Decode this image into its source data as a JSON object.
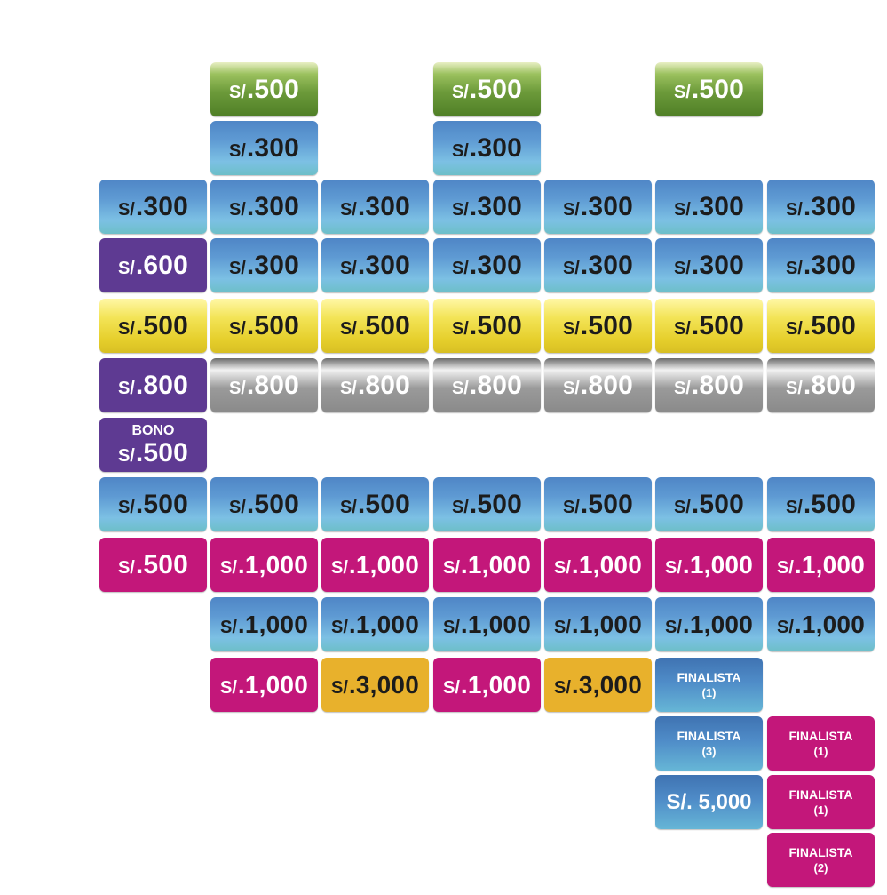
{
  "currency": "S/.",
  "prefix_5000": "S/. 5,000",
  "bono_label": "BONO",
  "finalista_label": "FINALISTA",
  "tiles": [
    {
      "id": "r1c2",
      "col": 1,
      "row": 0,
      "theme": "green",
      "amount": ".500"
    },
    {
      "id": "r1c4",
      "col": 3,
      "row": 0,
      "theme": "green",
      "amount": ".500"
    },
    {
      "id": "r1c6",
      "col": 5,
      "row": 0,
      "theme": "green",
      "amount": ".500"
    },
    {
      "id": "r2c2",
      "col": 1,
      "row": 1,
      "theme": "blue",
      "amount": ".300"
    },
    {
      "id": "r2c4",
      "col": 3,
      "row": 1,
      "theme": "blue",
      "amount": ".300"
    },
    {
      "id": "r3c1",
      "col": 0,
      "row": 2,
      "theme": "blue",
      "amount": ".300"
    },
    {
      "id": "r3c2",
      "col": 1,
      "row": 2,
      "theme": "blue",
      "amount": ".300"
    },
    {
      "id": "r3c3",
      "col": 2,
      "row": 2,
      "theme": "blue",
      "amount": ".300"
    },
    {
      "id": "r3c4",
      "col": 3,
      "row": 2,
      "theme": "blue",
      "amount": ".300"
    },
    {
      "id": "r3c5",
      "col": 4,
      "row": 2,
      "theme": "blue",
      "amount": ".300"
    },
    {
      "id": "r3c6",
      "col": 5,
      "row": 2,
      "theme": "blue",
      "amount": ".300"
    },
    {
      "id": "r3c7",
      "col": 6,
      "row": 2,
      "theme": "blue",
      "amount": ".300"
    },
    {
      "id": "r4c1",
      "col": 0,
      "row": 3,
      "theme": "purple",
      "amount": ".600"
    },
    {
      "id": "r4c2",
      "col": 1,
      "row": 3,
      "theme": "blue",
      "amount": ".300"
    },
    {
      "id": "r4c3",
      "col": 2,
      "row": 3,
      "theme": "blue",
      "amount": ".300"
    },
    {
      "id": "r4c4",
      "col": 3,
      "row": 3,
      "theme": "blue",
      "amount": ".300"
    },
    {
      "id": "r4c5",
      "col": 4,
      "row": 3,
      "theme": "blue",
      "amount": ".300"
    },
    {
      "id": "r4c6",
      "col": 5,
      "row": 3,
      "theme": "blue",
      "amount": ".300"
    },
    {
      "id": "r4c7",
      "col": 6,
      "row": 3,
      "theme": "blue",
      "amount": ".300"
    },
    {
      "id": "r5c1",
      "col": 0,
      "row": 4,
      "theme": "yellow",
      "amount": ".500"
    },
    {
      "id": "r5c2",
      "col": 1,
      "row": 4,
      "theme": "yellow",
      "amount": ".500"
    },
    {
      "id": "r5c3",
      "col": 2,
      "row": 4,
      "theme": "yellow",
      "amount": ".500"
    },
    {
      "id": "r5c4",
      "col": 3,
      "row": 4,
      "theme": "yellow",
      "amount": ".500"
    },
    {
      "id": "r5c5",
      "col": 4,
      "row": 4,
      "theme": "yellow",
      "amount": ".500"
    },
    {
      "id": "r5c6",
      "col": 5,
      "row": 4,
      "theme": "yellow",
      "amount": ".500"
    },
    {
      "id": "r5c7",
      "col": 6,
      "row": 4,
      "theme": "yellow",
      "amount": ".500"
    },
    {
      "id": "r6c1",
      "col": 0,
      "row": 5,
      "theme": "purple",
      "amount": ".800"
    },
    {
      "id": "r6c2",
      "col": 1,
      "row": 5,
      "theme": "gray",
      "amount": ".800"
    },
    {
      "id": "r6c3",
      "col": 2,
      "row": 5,
      "theme": "gray",
      "amount": ".800"
    },
    {
      "id": "r6c4",
      "col": 3,
      "row": 5,
      "theme": "gray",
      "amount": ".800"
    },
    {
      "id": "r6c5",
      "col": 4,
      "row": 5,
      "theme": "gray",
      "amount": ".800"
    },
    {
      "id": "r6c6",
      "col": 5,
      "row": 5,
      "theme": "gray",
      "amount": ".800"
    },
    {
      "id": "r6c7",
      "col": 6,
      "row": 5,
      "theme": "gray",
      "amount": ".800"
    },
    {
      "id": "r7c1",
      "col": 0,
      "row": 6,
      "theme": "purple",
      "kind": "bono",
      "amount": ".500"
    },
    {
      "id": "r8c1",
      "col": 0,
      "row": 7,
      "theme": "blue",
      "amount": ".500"
    },
    {
      "id": "r8c2",
      "col": 1,
      "row": 7,
      "theme": "blue",
      "amount": ".500"
    },
    {
      "id": "r8c3",
      "col": 2,
      "row": 7,
      "theme": "blue",
      "amount": ".500"
    },
    {
      "id": "r8c4",
      "col": 3,
      "row": 7,
      "theme": "blue",
      "amount": ".500"
    },
    {
      "id": "r8c5",
      "col": 4,
      "row": 7,
      "theme": "blue",
      "amount": ".500"
    },
    {
      "id": "r8c6",
      "col": 5,
      "row": 7,
      "theme": "blue",
      "amount": ".500"
    },
    {
      "id": "r8c7",
      "col": 6,
      "row": 7,
      "theme": "blue",
      "amount": ".500"
    },
    {
      "id": "r9c1",
      "col": 0,
      "row": 8,
      "theme": "magenta",
      "amount": ".500"
    },
    {
      "id": "r9c2",
      "col": 1,
      "row": 8,
      "theme": "magenta",
      "amount": ".1,000",
      "wide": true
    },
    {
      "id": "r9c3",
      "col": 2,
      "row": 8,
      "theme": "magenta",
      "amount": ".1,000",
      "wide": true
    },
    {
      "id": "r9c4",
      "col": 3,
      "row": 8,
      "theme": "magenta",
      "amount": ".1,000",
      "wide": true
    },
    {
      "id": "r9c5",
      "col": 4,
      "row": 8,
      "theme": "magenta",
      "amount": ".1,000",
      "wide": true
    },
    {
      "id": "r9c6",
      "col": 5,
      "row": 8,
      "theme": "magenta",
      "amount": ".1,000",
      "wide": true
    },
    {
      "id": "r9c7",
      "col": 6,
      "row": 8,
      "theme": "magenta",
      "amount": ".1,000",
      "wide": true
    },
    {
      "id": "r10c2",
      "col": 1,
      "row": 9,
      "theme": "blue",
      "amount": ".1,000",
      "wide": true
    },
    {
      "id": "r10c3",
      "col": 2,
      "row": 9,
      "theme": "blue",
      "amount": ".1,000",
      "wide": true
    },
    {
      "id": "r10c4",
      "col": 3,
      "row": 9,
      "theme": "blue",
      "amount": ".1,000",
      "wide": true
    },
    {
      "id": "r10c5",
      "col": 4,
      "row": 9,
      "theme": "blue",
      "amount": ".1,000",
      "wide": true
    },
    {
      "id": "r10c6",
      "col": 5,
      "row": 9,
      "theme": "blue",
      "amount": ".1,000",
      "wide": true
    },
    {
      "id": "r10c7",
      "col": 6,
      "row": 9,
      "theme": "blue",
      "amount": ".1,000",
      "wide": true
    },
    {
      "id": "r11c2",
      "col": 1,
      "row": 10,
      "theme": "magenta",
      "amount": ".1,000",
      "wide": true
    },
    {
      "id": "r11c3",
      "col": 2,
      "row": 10,
      "theme": "gold",
      "amount": ".3,000",
      "wide": true
    },
    {
      "id": "r11c4",
      "col": 3,
      "row": 10,
      "theme": "magenta",
      "amount": ".1,000",
      "wide": true
    },
    {
      "id": "r11c5",
      "col": 4,
      "row": 10,
      "theme": "gold",
      "amount": ".3,000",
      "wide": true
    },
    {
      "id": "r11c6",
      "col": 5,
      "row": 10,
      "theme": "blue-dark",
      "kind": "finalista",
      "sub": "(1)"
    },
    {
      "id": "r12c6",
      "col": 5,
      "row": 11,
      "theme": "blue-dark",
      "kind": "finalista",
      "sub": "(3)"
    },
    {
      "id": "r12c7",
      "col": 6,
      "row": 11,
      "theme": "magenta",
      "kind": "finalista",
      "sub": "(1)"
    },
    {
      "id": "r13c6",
      "col": 5,
      "row": 12,
      "theme": "blue-dark",
      "kind": "plain",
      "label": "S/. 5,000"
    },
    {
      "id": "r13c7",
      "col": 6,
      "row": 12,
      "theme": "magenta",
      "kind": "finalista",
      "sub": "(1)"
    },
    {
      "id": "r14c7",
      "col": 6,
      "row": 13,
      "theme": "magenta",
      "kind": "finalista",
      "sub": "(2)"
    }
  ]
}
